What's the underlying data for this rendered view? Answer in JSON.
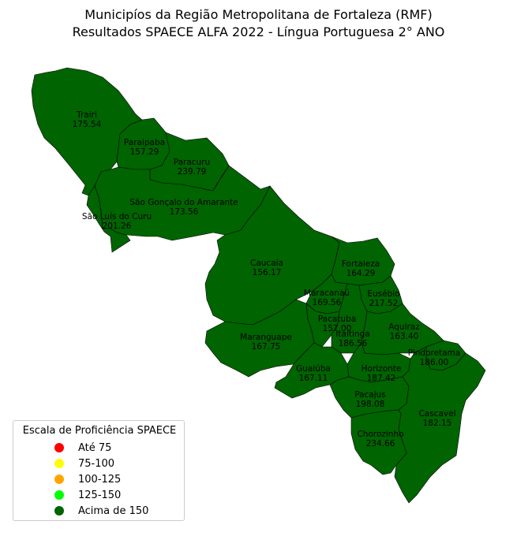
{
  "title": {
    "line1": "Municipíos da Região Metropolitana de Fortaleza (RMF)",
    "line2": "Resultados SPAECE ALFA 2022 - Língua Portuguesa 2° ANO"
  },
  "colors": {
    "fill": "#006400",
    "border": "#000000"
  },
  "legend": {
    "title": "Escala de Proficiência SPAECE",
    "items": [
      {
        "label": "Até 75",
        "color": "#ff0000"
      },
      {
        "label": "75-100",
        "color": "#ffff00"
      },
      {
        "label": "100-125",
        "color": "#ffa500"
      },
      {
        "label": "125-150",
        "color": "#00ff00"
      },
      {
        "label": "Acima de 150",
        "color": "#006400"
      }
    ]
  },
  "municipalities": [
    {
      "name": "Trairi",
      "score": "175.54"
    },
    {
      "name": "Paraipaba",
      "score": "157.29"
    },
    {
      "name": "Paracuru",
      "score": "239.79"
    },
    {
      "name": "São Gonçalo do Amarante",
      "score": "173.56"
    },
    {
      "name": "São Luís do Curu",
      "score": "201.26"
    },
    {
      "name": "Caucaia",
      "score": "156.17"
    },
    {
      "name": "Fortaleza",
      "score": "164.29"
    },
    {
      "name": "Maracanaú",
      "score": "169.56"
    },
    {
      "name": "Eusébio",
      "score": "217.52"
    },
    {
      "name": "Pacatuba",
      "score": "157.00"
    },
    {
      "name": "Itaitinga",
      "score": "186.56"
    },
    {
      "name": "Aquiraz",
      "score": "163.40"
    },
    {
      "name": "Maranguape",
      "score": "167.75"
    },
    {
      "name": "Pindoretama",
      "score": "186.00"
    },
    {
      "name": "Horizonte",
      "score": "187.42"
    },
    {
      "name": "Guaiúba",
      "score": "167.11"
    },
    {
      "name": "Pacajus",
      "score": "198.08"
    },
    {
      "name": "Cascavel",
      "score": "182.15"
    },
    {
      "name": "Chorozinho",
      "score": "234.66"
    }
  ]
}
